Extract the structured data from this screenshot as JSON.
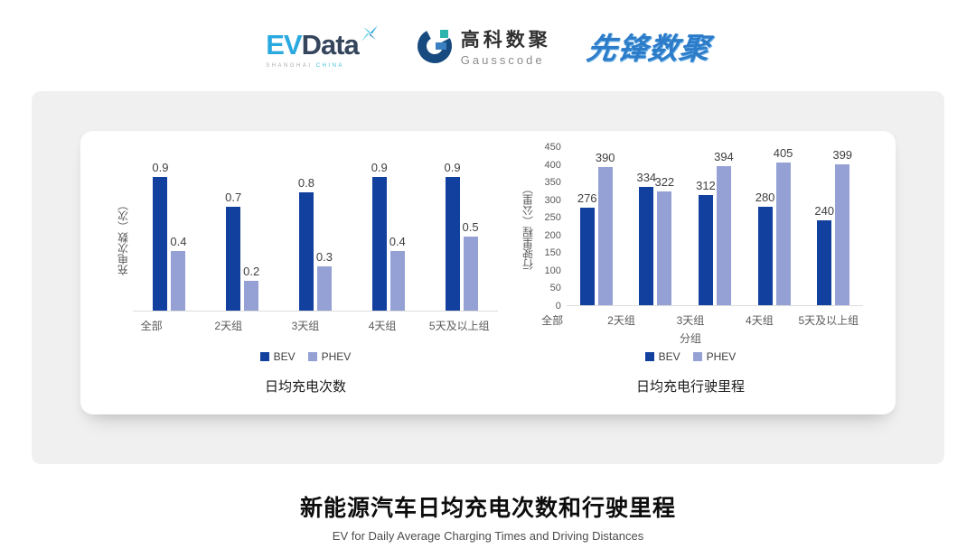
{
  "header": {
    "evdata": {
      "ev": "EV",
      "data": "Data",
      "sub1": "SHANGHAI",
      "sub2": "CHINA"
    },
    "gausscode": {
      "cn": "高科数聚",
      "en": "Gausscode"
    },
    "xianfeng": "先锋数聚"
  },
  "colors": {
    "bev": "#12409f",
    "phev": "#95a1d4",
    "brand_blue": "#29a9e0",
    "brand_navy": "#174a7e",
    "brand_teal": "#2cb5ad"
  },
  "chart_data": [
    {
      "type": "bar",
      "title": "日均充电次数",
      "ylabel": "充电次数（次）",
      "xlabel": "",
      "categories": [
        "全部",
        "2天组",
        "3天组",
        "4天组",
        "5天及以上组"
      ],
      "series": [
        {
          "name": "BEV",
          "color": "#12409f",
          "values": [
            0.9,
            0.7,
            0.8,
            0.9,
            0.9
          ]
        },
        {
          "name": "PHEV",
          "color": "#95a1d4",
          "values": [
            0.4,
            0.2,
            0.3,
            0.4,
            0.5
          ]
        }
      ],
      "ylim": [
        0,
        1.0
      ],
      "yticks": [],
      "grid": false,
      "value_labels": true,
      "legend_position": "bottom"
    },
    {
      "type": "bar",
      "title": "日均充电行驶里程",
      "ylabel": "行驶里程（公里）",
      "xlabel": "分组",
      "categories": [
        "全部",
        "2天组",
        "3天组",
        "4天组",
        "5天及以上组"
      ],
      "series": [
        {
          "name": "BEV",
          "color": "#12409f",
          "values": [
            276,
            334,
            312,
            280,
            240
          ]
        },
        {
          "name": "PHEV",
          "color": "#95a1d4",
          "values": [
            390,
            322,
            394,
            405,
            399
          ]
        }
      ],
      "ylim": [
        0,
        450
      ],
      "yticks": [
        0,
        50,
        100,
        150,
        200,
        250,
        300,
        350,
        400,
        450
      ],
      "grid": false,
      "value_labels": true,
      "legend_position": "bottom"
    }
  ],
  "footer": {
    "title": "新能源汽车日均充电次数和行驶里程",
    "subtitle": "EV for Daily Average Charging Times and Driving Distances"
  }
}
